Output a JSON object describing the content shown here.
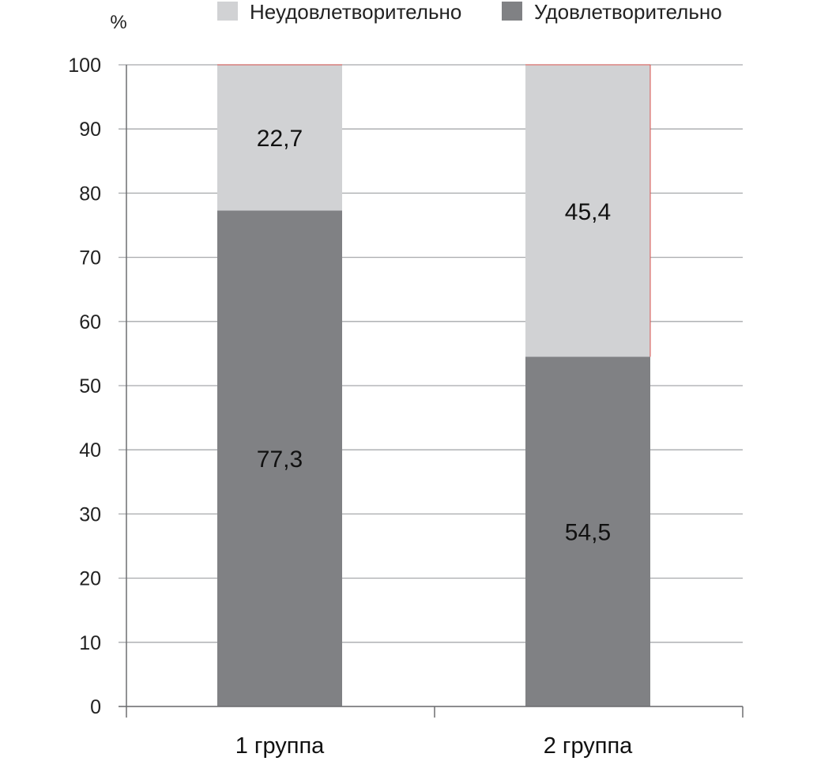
{
  "chart_data": {
    "type": "bar",
    "stacked": true,
    "categories": [
      "1 группа",
      "2 группа"
    ],
    "series": [
      {
        "name": "Удовлетворительно",
        "values": [
          77.3,
          54.5
        ],
        "labels": [
          "77,3",
          "54,5"
        ],
        "color": "#808184"
      },
      {
        "name": "Неудовлетворительно",
        "values": [
          22.7,
          45.4
        ],
        "labels": [
          "22,7",
          "45,4"
        ],
        "color": "#d1d2d4"
      }
    ],
    "legend_order": [
      1,
      0
    ],
    "legend_position": "top",
    "y_unit": "%",
    "ylim": [
      0,
      100
    ],
    "yticks": [
      0,
      10,
      20,
      30,
      40,
      50,
      60,
      70,
      80,
      90,
      100
    ],
    "grid": true,
    "colors": {
      "gridline": "#a7a9ac",
      "axis": "#6d6e71",
      "top_edge": "#d9534f"
    }
  }
}
